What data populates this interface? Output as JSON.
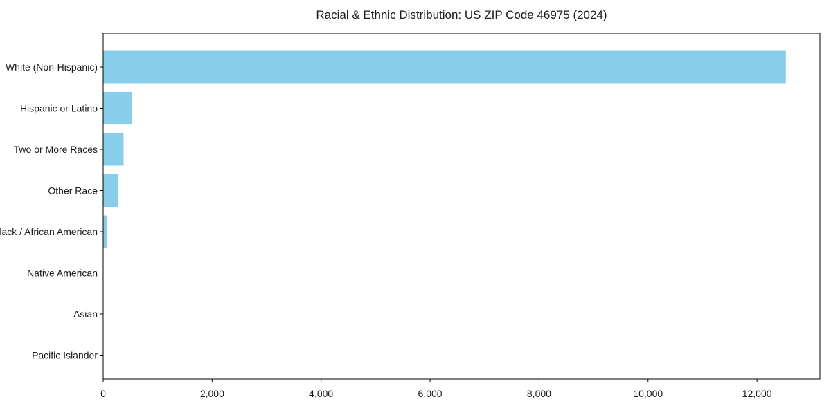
{
  "chart_data": {
    "type": "bar",
    "orientation": "horizontal",
    "title": "Racial & Ethnic Distribution: US ZIP Code 46975 (2024)",
    "categories": [
      "White (Non-Hispanic)",
      "Hispanic or Latino",
      "Two or More Races",
      "Other Race",
      "Black / African American",
      "Native American",
      "Asian",
      "Pacific Islander"
    ],
    "values": [
      12530,
      530,
      375,
      280,
      75,
      0,
      0,
      0
    ],
    "xlabel": "",
    "ylabel": "",
    "xlim": [
      0,
      13155
    ],
    "xticks": {
      "values": [
        0,
        2000,
        4000,
        6000,
        8000,
        10000,
        12000
      ],
      "labels": [
        "0",
        "2,000",
        "4,000",
        "6,000",
        "8,000",
        "10,000",
        "12,000"
      ]
    },
    "grid": false,
    "legend_position": "none",
    "colors": {
      "bar": "#87CEEB",
      "spine": "#000000",
      "background": "#ffffff",
      "text": "#1a1a1a"
    }
  }
}
